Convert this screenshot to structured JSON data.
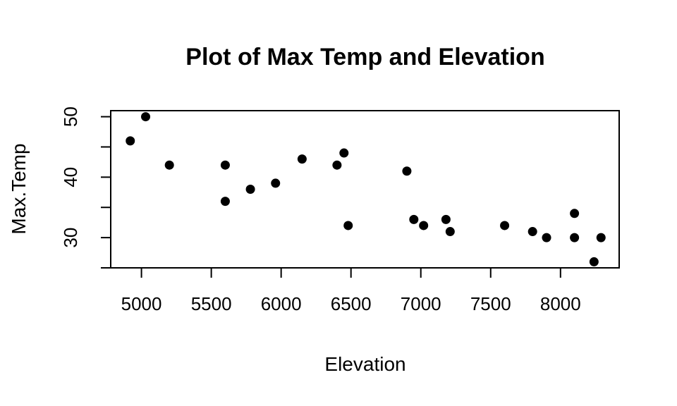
{
  "chart_data": {
    "type": "scatter",
    "title": "Plot of Max Temp and Elevation",
    "xlabel": "Elevation",
    "ylabel": "Max.Temp",
    "xlim": [
      4780,
      8420
    ],
    "ylim": [
      25,
      51
    ],
    "x_ticks": [
      5000,
      5500,
      6000,
      6500,
      7000,
      7500,
      8000
    ],
    "y_ticks": [
      25,
      30,
      35,
      40,
      45,
      50
    ],
    "y_tick_labels": [
      "30",
      "40",
      "50"
    ],
    "y_tick_label_values": [
      30,
      40,
      50
    ],
    "grid": false,
    "legend": "none",
    "point_color": "#000000",
    "points": [
      {
        "x": 4920,
        "y": 46
      },
      {
        "x": 5030,
        "y": 50
      },
      {
        "x": 5200,
        "y": 42
      },
      {
        "x": 5600,
        "y": 42
      },
      {
        "x": 5600,
        "y": 36
      },
      {
        "x": 5780,
        "y": 38
      },
      {
        "x": 5960,
        "y": 39
      },
      {
        "x": 6150,
        "y": 43
      },
      {
        "x": 6400,
        "y": 42
      },
      {
        "x": 6450,
        "y": 44
      },
      {
        "x": 6480,
        "y": 32
      },
      {
        "x": 6900,
        "y": 41
      },
      {
        "x": 6950,
        "y": 33
      },
      {
        "x": 7020,
        "y": 32
      },
      {
        "x": 7180,
        "y": 33
      },
      {
        "x": 7210,
        "y": 31
      },
      {
        "x": 7600,
        "y": 32
      },
      {
        "x": 7800,
        "y": 31
      },
      {
        "x": 7900,
        "y": 30
      },
      {
        "x": 8100,
        "y": 34
      },
      {
        "x": 8100,
        "y": 30
      },
      {
        "x": 8240,
        "y": 26
      },
      {
        "x": 8290,
        "y": 30
      }
    ]
  }
}
